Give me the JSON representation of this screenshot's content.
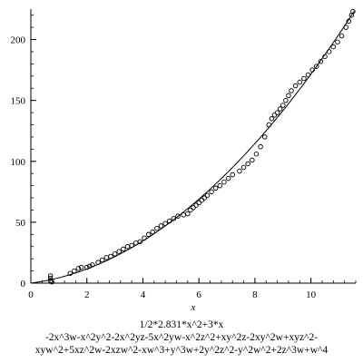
{
  "chart_data": {
    "type": "scatter",
    "title": "",
    "xlabel": "x",
    "ylabel": "",
    "xlim": [
      0,
      11.6
    ],
    "ylim": [
      0,
      225
    ],
    "xticks": [
      0,
      2,
      4,
      6,
      8,
      10
    ],
    "yticks": [
      0,
      50,
      100,
      150,
      200
    ],
    "grid": false,
    "legend": "none",
    "colors": {
      "axes": "#000000",
      "curve": "#000000",
      "points": "#000000"
    },
    "fit_curve": {
      "label": "1/2*2.831*x^2+3*x",
      "a": 1.4155,
      "b": 3
    },
    "series": [
      {
        "x": [
          0.7,
          0.7,
          0.7,
          0.75,
          1.4,
          1.55,
          1.7,
          1.8,
          2.0,
          2.1,
          2.2,
          2.4,
          2.55,
          2.7,
          2.85,
          3.0,
          3.15,
          3.3,
          3.45,
          3.6,
          3.75,
          3.9,
          4.05,
          4.2,
          4.35,
          4.5,
          4.65,
          4.8,
          4.95,
          5.1,
          5.25,
          5.45,
          5.6,
          5.7,
          5.8,
          5.9,
          6.0,
          6.1,
          6.2,
          6.3,
          6.45,
          6.6,
          6.75,
          6.9,
          7.05,
          7.2,
          7.45,
          7.6,
          7.75,
          7.9,
          8.05,
          8.2,
          8.35,
          8.5,
          8.6,
          8.7,
          8.8,
          8.9,
          9.0,
          9.1,
          9.2,
          9.3,
          9.45,
          9.6,
          9.75,
          9.9,
          10.05,
          10.2,
          10.35,
          10.5,
          10.65,
          10.8,
          10.95,
          11.1,
          11.25,
          11.35,
          11.45,
          11.5
        ],
        "y": [
          2,
          4,
          6,
          1,
          8,
          10,
          12,
          13,
          13,
          14,
          15,
          17,
          19,
          21,
          22,
          24,
          26,
          28,
          30,
          31,
          33,
          34,
          37,
          40,
          42,
          45,
          47,
          49,
          51,
          53,
          55,
          56,
          57,
          60,
          62,
          64,
          66,
          68,
          70,
          72,
          75,
          78,
          80,
          83,
          86,
          89,
          92,
          95,
          98,
          101,
          106,
          112,
          120,
          130,
          135,
          138,
          140,
          143,
          146,
          150,
          154,
          158,
          162,
          165,
          168,
          171,
          175,
          178,
          182,
          186,
          190,
          194,
          198,
          203,
          210,
          215,
          220,
          223
        ]
      }
    ]
  },
  "caption_lines": [
    "1/2*2.831*x^2+3*x",
    "-2x^3w-x^2y^2-2x^2yz-5x^2yw-x^2z^2+xy^2z-2xy^2w+xyz^2-",
    "xyw^2+5xz^2w-2xzw^2-xw^3+y^3w+2y^2z^2-y^2w^2+2z^3w+w^4"
  ]
}
